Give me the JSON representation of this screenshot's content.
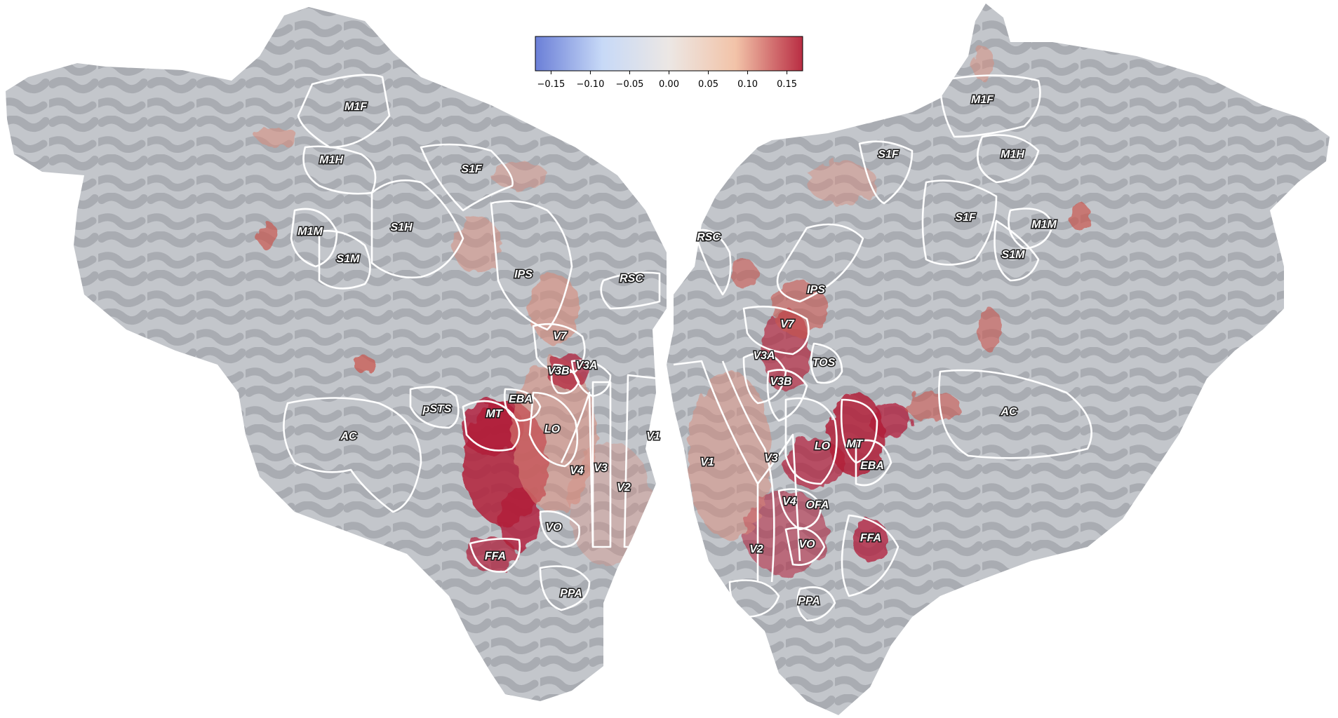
{
  "colorbar": {
    "ticks": [
      "−0.15",
      "−0.10",
      "−0.05",
      "0.00",
      "0.05",
      "0.10",
      "0.15"
    ],
    "range": [
      -0.17,
      0.17
    ],
    "colors": [
      "#6b7fd7",
      "#c7d9f7",
      "#ece7e4",
      "#f2c3a8",
      "#b92d43"
    ]
  },
  "left_hemisphere": {
    "labels": [
      "M1F",
      "M1H",
      "S1F",
      "M1M",
      "S1H",
      "S1M",
      "IPS",
      "RSC",
      "V7",
      "V3B",
      "V3A",
      "pSTS",
      "EBA",
      "MT",
      "AC",
      "LO",
      "V1",
      "V4",
      "V3",
      "V2",
      "VO",
      "FFA",
      "PPA"
    ]
  },
  "right_hemisphere": {
    "labels": [
      "M1F",
      "S1F",
      "M1H",
      "S1F",
      "M1M",
      "S1M",
      "RSC",
      "IPS",
      "V7",
      "V3A",
      "TOS",
      "V3B",
      "AC",
      "LO",
      "MT",
      "EBA",
      "V1",
      "V3",
      "V4",
      "OFA",
      "FFA",
      "V2",
      "VO",
      "PPA"
    ]
  },
  "colors": {
    "cortex_light": "#c3c6cb",
    "cortex_dark": "#a9acb2",
    "outline": "#ffffff",
    "positive_strong": "#b21c38",
    "positive_weak": "#d98a7a"
  }
}
